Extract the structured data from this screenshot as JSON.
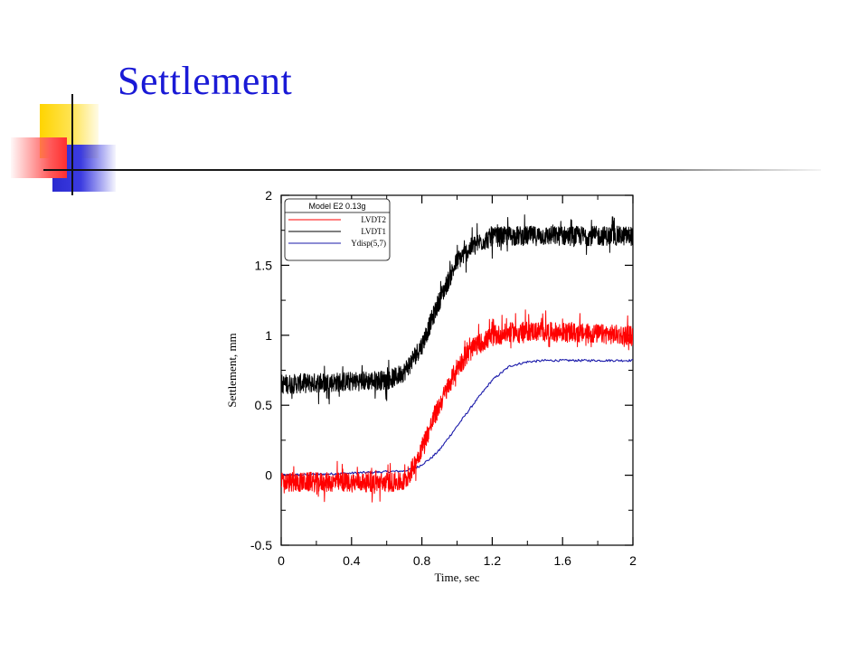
{
  "slide": {
    "title": "Settlement"
  },
  "chart_data": {
    "type": "line",
    "xlabel": "Time, sec",
    "ylabel": "Settlement, mm",
    "xlim": [
      0,
      2
    ],
    "ylim": [
      -0.5,
      2
    ],
    "xticks": [
      0,
      0.4,
      0.8,
      1.2,
      1.6,
      2
    ],
    "xtick_labels": [
      "0",
      "0.4",
      "0.8",
      "1.2",
      "1.6",
      "2"
    ],
    "yticks": [
      -0.5,
      0,
      0.5,
      1,
      1.5,
      2
    ],
    "ytick_labels": [
      "-0.5",
      "0",
      "0.5",
      "1",
      "1.5",
      "2"
    ],
    "grid": false,
    "legend": {
      "title": "Model E2 0.13g",
      "placement": "top-left"
    },
    "series": [
      {
        "name": "LVDT2",
        "color": "#ff0000",
        "noise": 0.07,
        "x": [
          0,
          0.7,
          0.74,
          0.8,
          0.9,
          1.0,
          1.1,
          1.2,
          1.3,
          1.4,
          2.0
        ],
        "y": [
          -0.05,
          -0.05,
          0.03,
          0.2,
          0.5,
          0.77,
          0.92,
          0.99,
          1.02,
          1.03,
          1.0
        ]
      },
      {
        "name": "LVDT1",
        "color": "#000000",
        "noise": 0.07,
        "x": [
          0,
          0.6,
          0.65,
          0.7,
          0.8,
          0.9,
          1.0,
          1.1,
          1.2,
          1.3,
          2.0
        ],
        "y": [
          0.65,
          0.68,
          0.7,
          0.74,
          0.93,
          1.25,
          1.53,
          1.65,
          1.7,
          1.71,
          1.71
        ]
      },
      {
        "name": "Ydisp(5,7)",
        "color": "#1a1aaa",
        "noise": 0.008,
        "x": [
          0,
          0.3,
          0.7,
          0.78,
          0.85,
          0.9,
          1.0,
          1.1,
          1.2,
          1.3,
          1.4,
          1.5,
          2.0
        ],
        "y": [
          0.0,
          0.01,
          0.03,
          0.06,
          0.12,
          0.18,
          0.35,
          0.52,
          0.68,
          0.78,
          0.81,
          0.82,
          0.82
        ]
      }
    ]
  }
}
